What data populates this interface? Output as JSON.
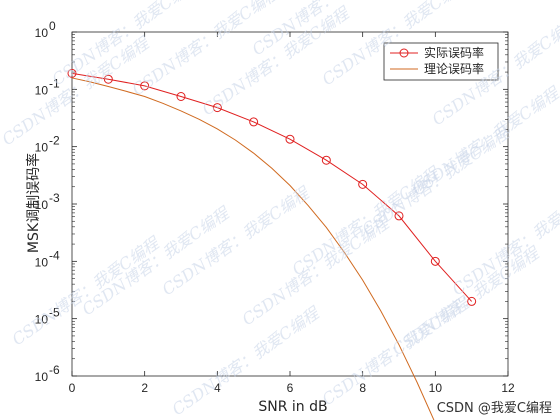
{
  "chart_data": {
    "type": "line",
    "title": "",
    "xlabel": "SNR in dB",
    "ylabel": "MSK调制误码率",
    "xlim": [
      0,
      12
    ],
    "ylim": [
      1e-06,
      1
    ],
    "yscale": "log",
    "x_ticks": [
      "0",
      "2",
      "4",
      "6",
      "8",
      "10",
      "12"
    ],
    "y_tick_exponents": [
      "0",
      "-1",
      "-2",
      "-3",
      "-4",
      "-5",
      "-6"
    ],
    "grid": false,
    "legend_position": "top-right",
    "series": [
      {
        "name": "实际误码率",
        "color": "#e02020",
        "marker": "circle",
        "x": [
          0,
          1,
          2,
          3,
          4,
          5,
          6,
          7,
          8,
          9,
          10,
          11
        ],
        "values": [
          0.19,
          0.15,
          0.115,
          0.075,
          0.048,
          0.027,
          0.0135,
          0.0058,
          0.0022,
          0.00062,
          0.0001,
          2e-05
        ]
      },
      {
        "name": "理论误码率",
        "color": "#d06a20",
        "marker": "none",
        "x": [
          0,
          0.5,
          1,
          1.5,
          2,
          2.5,
          3,
          3.5,
          4,
          4.5,
          5,
          5.5,
          6,
          6.5,
          7,
          7.5,
          8,
          8.5,
          9,
          9.5,
          10
        ],
        "values": [
          0.158,
          0.135,
          0.112,
          0.092,
          0.075,
          0.057,
          0.042,
          0.03,
          0.0204,
          0.013,
          0.0077,
          0.0042,
          0.0021,
          0.00094,
          0.00039,
          0.000142,
          4.7e-05,
          1.36e-05,
          3.5e-06,
          7.7e-07,
          1.5e-07
        ]
      }
    ]
  },
  "watermark": "CSDN博客：我爱C编程",
  "credit": "CSDN @我爱C编程"
}
